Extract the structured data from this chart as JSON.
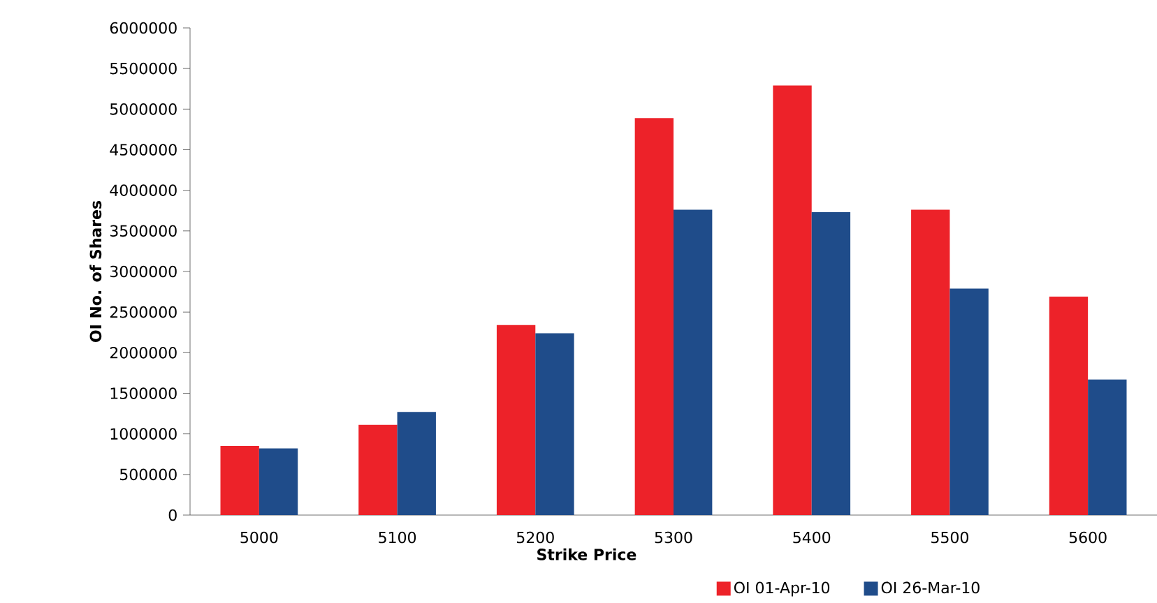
{
  "chart_data": {
    "type": "bar",
    "xlabel": "Strike Price",
    "ylabel": "OI No. of Shares",
    "categories": [
      "5000",
      "5100",
      "5200",
      "5300",
      "5400",
      "5500",
      "5600"
    ],
    "series": [
      {
        "name": "OI 01-Apr-10",
        "color": "#ed2229",
        "values": [
          850000,
          1110000,
          2340000,
          4890000,
          5290000,
          3760000,
          2690000
        ]
      },
      {
        "name": "OI 26-Mar-10",
        "color": "#1f4c8a",
        "values": [
          820000,
          1270000,
          2240000,
          3760000,
          3730000,
          2790000,
          1670000
        ]
      }
    ],
    "ylim": [
      0,
      6000000
    ],
    "yticks": [
      0,
      500000,
      1000000,
      1500000,
      2000000,
      2500000,
      3000000,
      3500000,
      4000000,
      4500000,
      5000000,
      5500000,
      6000000
    ],
    "legend": "bottom right",
    "grid": false
  }
}
